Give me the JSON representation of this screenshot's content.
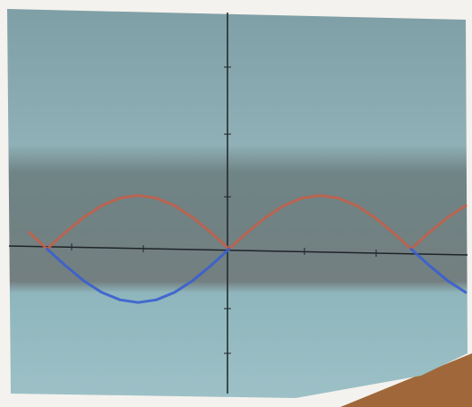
{
  "chart_data": {
    "type": "line",
    "x": [
      -1.1,
      -1.0,
      -0.9,
      -0.8,
      -0.7,
      -0.6,
      -0.5,
      -0.4,
      -0.3,
      -0.2,
      -0.1,
      0,
      0.1,
      0.2,
      0.3,
      0.4,
      0.5,
      0.6,
      0.7,
      0.8,
      0.9,
      1.0,
      1.1,
      1.2,
      1.3
    ],
    "series": [
      {
        "color": "#c0604a",
        "values": [
          0.31,
          0,
          0.31,
          0.59,
          0.81,
          0.95,
          1,
          0.95,
          0.81,
          0.59,
          0.31,
          0,
          0.31,
          0.59,
          0.81,
          0.95,
          1,
          0.95,
          0.81,
          0.59,
          0.31,
          0,
          0.31,
          0.59,
          0.81
        ]
      },
      {
        "color": "#3a5fd0",
        "values": [
          null,
          0,
          -0.31,
          -0.59,
          -0.81,
          -0.95,
          -1,
          -0.95,
          -0.81,
          -0.59,
          -0.31,
          0,
          null,
          null,
          null,
          null,
          null,
          null,
          null,
          null,
          null,
          0,
          -0.31,
          -0.59,
          -0.81
        ]
      }
    ],
    "xlim": [
      -1.2,
      1.3
    ],
    "ylim": [
      -2.7,
      4.4
    ]
  }
}
